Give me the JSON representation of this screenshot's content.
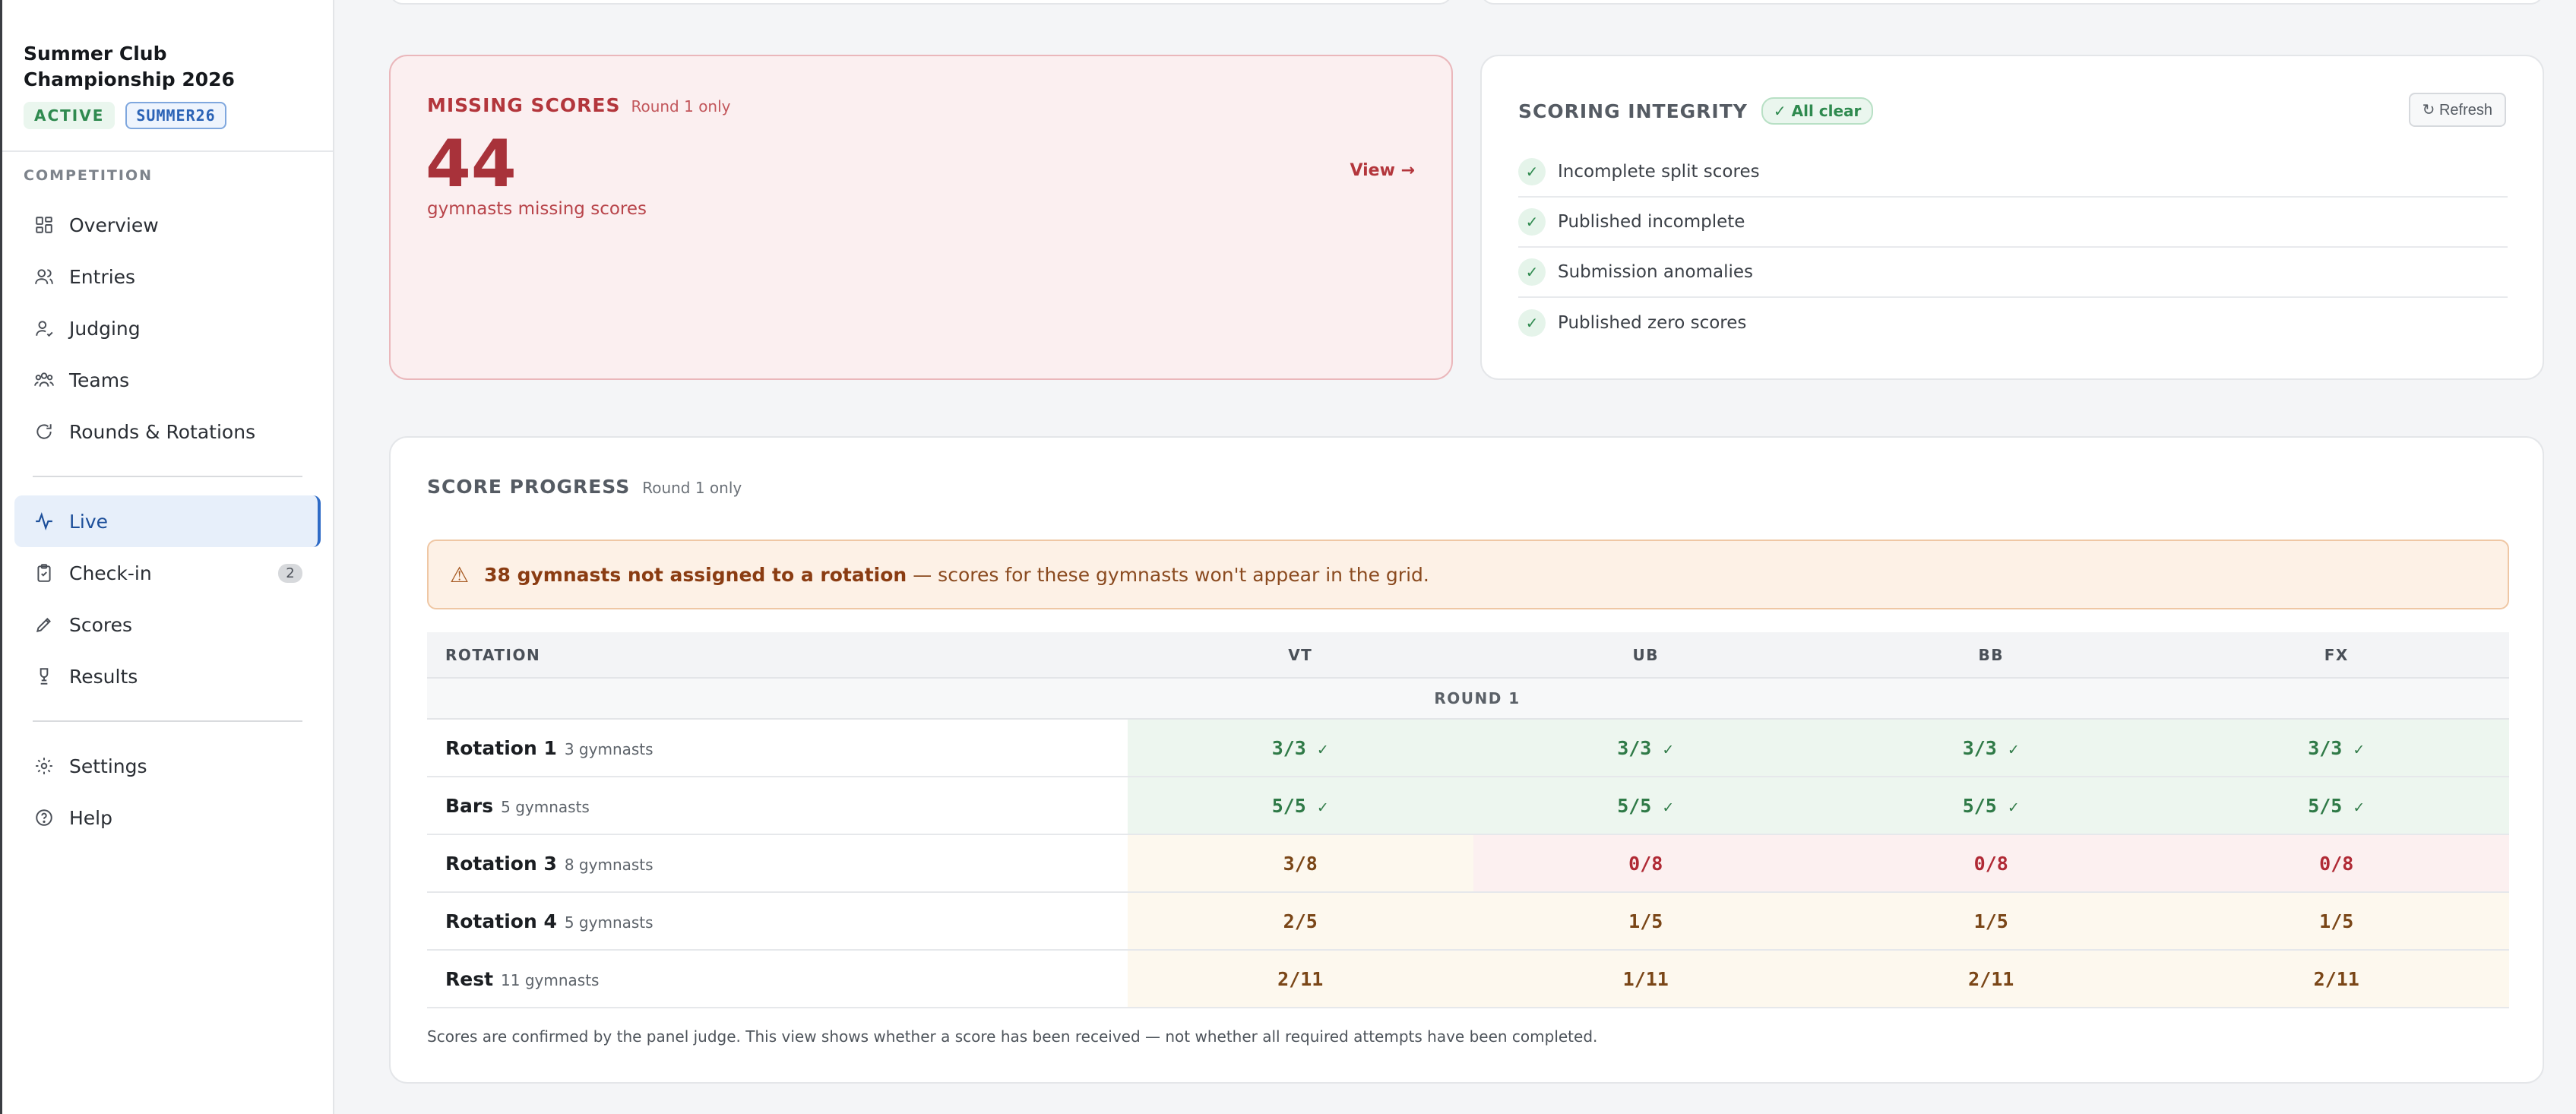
{
  "sidebar": {
    "competition_title": "Summer Club Championship 2026",
    "status_badge": "ACTIVE",
    "code_badge": "SUMMER26",
    "section_label": "COMPETITION",
    "nav_primary": [
      {
        "label": "Overview",
        "icon": "grid-icon"
      },
      {
        "label": "Entries",
        "icon": "users-icon"
      },
      {
        "label": "Judging",
        "icon": "judge-icon"
      },
      {
        "label": "Teams",
        "icon": "team-icon"
      },
      {
        "label": "Rounds & Rotations",
        "icon": "rotate-icon"
      }
    ],
    "nav_secondary": [
      {
        "label": "Live",
        "icon": "pulse-icon",
        "active": true
      },
      {
        "label": "Check-in",
        "icon": "clipboard-check-icon",
        "count": "2"
      },
      {
        "label": "Scores",
        "icon": "pencil-icon"
      },
      {
        "label": "Results",
        "icon": "trophy-icon"
      }
    ],
    "nav_footer": [
      {
        "label": "Settings",
        "icon": "gear-icon"
      },
      {
        "label": "Help",
        "icon": "help-icon"
      }
    ]
  },
  "missing_scores": {
    "title": "MISSING SCORES",
    "scope": "Round 1 only",
    "count": "44",
    "caption": "gymnasts missing scores",
    "view_label": "View →"
  },
  "integrity": {
    "title": "SCORING INTEGRITY",
    "status": "✓ All clear",
    "refresh_label": "↻ Refresh",
    "checks": [
      "Incomplete split scores",
      "Published incomplete",
      "Submission anomalies",
      "Published zero scores"
    ]
  },
  "score_progress": {
    "title": "SCORE PROGRESS",
    "scope": "Round 1 only",
    "warning_bold": "38 gymnasts not assigned to a rotation",
    "warning_rest": "— scores for these gymnasts won't appear in the grid.",
    "columns": [
      "ROTATION",
      "VT",
      "UB",
      "BB",
      "FX"
    ],
    "round_label": "ROUND 1",
    "rows": [
      {
        "name": "Rotation 1",
        "gymnasts": "3 gymnasts",
        "cells": [
          {
            "value": "3/3",
            "state": "done"
          },
          {
            "value": "3/3",
            "state": "done"
          },
          {
            "value": "3/3",
            "state": "done"
          },
          {
            "value": "3/3",
            "state": "done"
          }
        ]
      },
      {
        "name": "Bars",
        "gymnasts": "5 gymnasts",
        "cells": [
          {
            "value": "5/5",
            "state": "done"
          },
          {
            "value": "5/5",
            "state": "done"
          },
          {
            "value": "5/5",
            "state": "done"
          },
          {
            "value": "5/5",
            "state": "done"
          }
        ]
      },
      {
        "name": "Rotation 3",
        "gymnasts": "8 gymnasts",
        "cells": [
          {
            "value": "3/8",
            "state": "part"
          },
          {
            "value": "0/8",
            "state": "zero"
          },
          {
            "value": "0/8",
            "state": "zero"
          },
          {
            "value": "0/8",
            "state": "zero"
          }
        ]
      },
      {
        "name": "Rotation 4",
        "gymnasts": "5 gymnasts",
        "cells": [
          {
            "value": "2/5",
            "state": "part"
          },
          {
            "value": "1/5",
            "state": "part"
          },
          {
            "value": "1/5",
            "state": "part"
          },
          {
            "value": "1/5",
            "state": "part"
          }
        ]
      },
      {
        "name": "Rest",
        "gymnasts": "11 gymnasts",
        "cells": [
          {
            "value": "2/11",
            "state": "part"
          },
          {
            "value": "1/11",
            "state": "part"
          },
          {
            "value": "2/11",
            "state": "part"
          },
          {
            "value": "2/11",
            "state": "part"
          }
        ]
      }
    ],
    "footnote": "Scores are confirmed by the panel judge. This view shows whether a score has been received — not whether all required attempts have been completed."
  }
}
